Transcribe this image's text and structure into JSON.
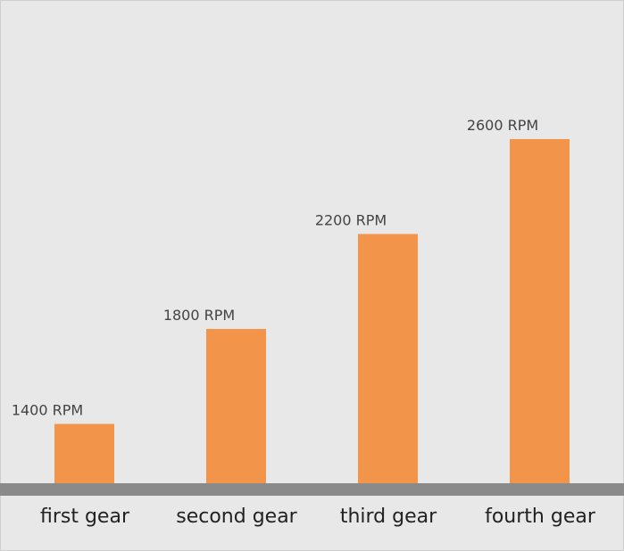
{
  "chart_data": {
    "type": "bar",
    "categories": [
      "first gear",
      "second gear",
      "third gear",
      "fourth gear"
    ],
    "values": [
      1400,
      1800,
      2200,
      2600
    ],
    "value_labels": [
      "1400 RPM",
      "1800 RPM",
      "2200 RPM",
      "2600 RPM"
    ],
    "color": "#f2944a",
    "ylim": [
      1150,
      2600
    ]
  }
}
